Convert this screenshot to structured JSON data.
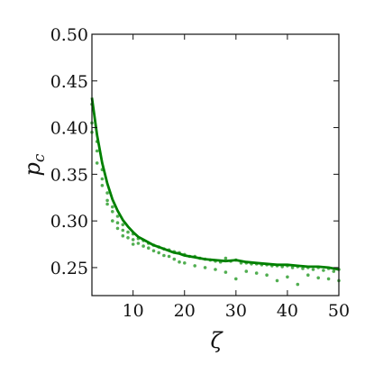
{
  "chart_data": {
    "type": "scatter",
    "title": "",
    "xlabel": "ζ",
    "ylabel_main": "p",
    "ylabel_sub": "c",
    "xlim": [
      2,
      50
    ],
    "ylim": [
      0.22,
      0.5
    ],
    "xticks": [
      10,
      20,
      30,
      40,
      50
    ],
    "yticks": [
      0.25,
      0.3,
      0.35,
      0.4,
      0.45,
      0.5
    ],
    "ytick_labels": [
      "0.25",
      "0.30",
      "0.35",
      "0.40",
      "0.45",
      "0.50"
    ],
    "grid": false,
    "legend": "none",
    "line_color": "#008000",
    "point_color": "#33a033",
    "series": [
      {
        "kind": "line",
        "x": [
          2,
          3,
          4,
          5,
          6,
          7,
          8,
          9,
          10,
          11,
          12,
          13,
          14,
          15,
          16,
          17,
          18,
          19,
          20,
          22,
          24,
          26,
          28,
          30,
          32,
          34,
          36,
          38,
          40,
          42,
          44,
          46,
          48,
          50
        ],
        "y": [
          0.432,
          0.392,
          0.362,
          0.34,
          0.323,
          0.311,
          0.301,
          0.294,
          0.288,
          0.283,
          0.28,
          0.277,
          0.274,
          0.272,
          0.27,
          0.268,
          0.266,
          0.265,
          0.263,
          0.261,
          0.259,
          0.258,
          0.257,
          0.258,
          0.256,
          0.255,
          0.254,
          0.253,
          0.253,
          0.252,
          0.251,
          0.251,
          0.25,
          0.248
        ]
      },
      {
        "kind": "points",
        "x": [
          2,
          2,
          2,
          3,
          3,
          3,
          4,
          4,
          4,
          5,
          5,
          5,
          6,
          6,
          6,
          7,
          7,
          7,
          8,
          8,
          8,
          9,
          9,
          10,
          10,
          10,
          11,
          11,
          12,
          12,
          13,
          13,
          14,
          14,
          15,
          15,
          16,
          16,
          17,
          17,
          18,
          18,
          19,
          19,
          20,
          20,
          21,
          22,
          22,
          23,
          24,
          24,
          25,
          26,
          26,
          27,
          28,
          28,
          29,
          30,
          30,
          31,
          32,
          32,
          33,
          34,
          34,
          35,
          36,
          36,
          37,
          38,
          38,
          39,
          40,
          40,
          41,
          42,
          42,
          43,
          44,
          44,
          45,
          46,
          46,
          47,
          48,
          48,
          49,
          50,
          50
        ],
        "y": [
          0.425,
          0.405,
          0.395,
          0.385,
          0.375,
          0.362,
          0.355,
          0.345,
          0.338,
          0.33,
          0.322,
          0.318,
          0.315,
          0.31,
          0.3,
          0.305,
          0.298,
          0.292,
          0.296,
          0.29,
          0.284,
          0.288,
          0.282,
          0.286,
          0.28,
          0.275,
          0.281,
          0.276,
          0.279,
          0.273,
          0.276,
          0.271,
          0.274,
          0.268,
          0.272,
          0.266,
          0.27,
          0.263,
          0.269,
          0.262,
          0.267,
          0.259,
          0.266,
          0.256,
          0.264,
          0.255,
          0.262,
          0.262,
          0.252,
          0.26,
          0.259,
          0.25,
          0.258,
          0.257,
          0.248,
          0.256,
          0.26,
          0.245,
          0.257,
          0.258,
          0.238,
          0.255,
          0.255,
          0.246,
          0.254,
          0.254,
          0.244,
          0.253,
          0.253,
          0.242,
          0.252,
          0.252,
          0.236,
          0.251,
          0.252,
          0.24,
          0.25,
          0.251,
          0.232,
          0.249,
          0.25,
          0.242,
          0.248,
          0.25,
          0.239,
          0.247,
          0.249,
          0.238,
          0.246,
          0.248,
          0.236
        ]
      }
    ]
  }
}
